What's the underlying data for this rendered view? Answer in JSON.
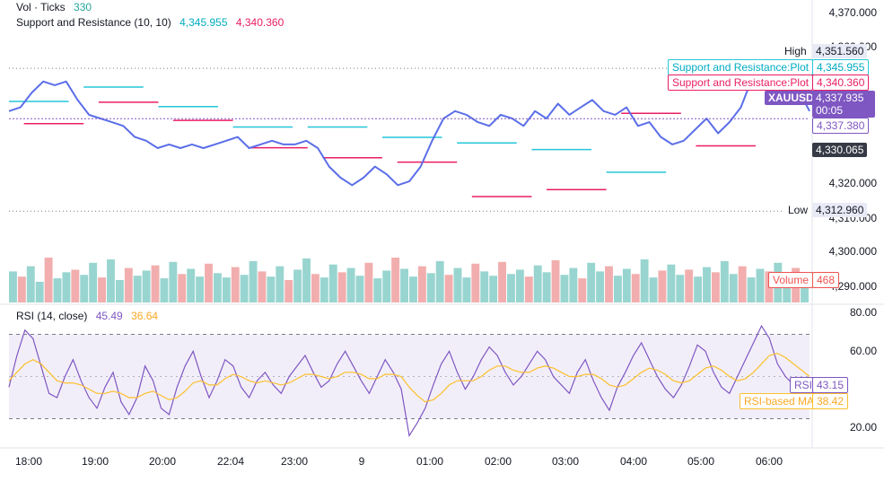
{
  "legend": {
    "vol_label": "Vol · Ticks",
    "vol_value": "330",
    "sr_label": "Support and Resistance (10, 10)",
    "sr_value1": "4,345.955",
    "sr_value2": "4,340.360",
    "rsi_label": "RSI (14, close)",
    "rsi_value": "45.49",
    "rsi_ma_value": "36.64"
  },
  "price_axis": {
    "ticks": [
      "4,370.000",
      "4,360.000",
      "4,320.000",
      "4,310.000",
      "4,300.000",
      "4,290.000"
    ]
  },
  "rsi_axis": {
    "ticks": [
      "80.00",
      "60.00",
      "20.00"
    ]
  },
  "tags": {
    "high_label": "High",
    "high_value": "4,351.560",
    "sr_plot_label": "Support and Resistance:Plot",
    "sr_plot_value_1": "4,345.955",
    "sr_plot_value_2": "4,340.360",
    "symbol": "XAUUSD",
    "last_price": "4,337.935",
    "countdown": "00:05",
    "prev_price": "4,337.380",
    "crosshair_price": "4,330.065",
    "low_label": "Low",
    "low_value": "4,312.960",
    "volume_label": "Volume",
    "volume_value": "468",
    "rsi_label": "RSI",
    "rsi_value": "43.15",
    "rsi_ma_label": "RSI-based MA",
    "rsi_ma_value": "38.42"
  },
  "time_axis": [
    "18:00",
    "19:00",
    "20:00",
    "22:04",
    "23:00",
    "9",
    "01:00",
    "02:00",
    "03:00",
    "04:00",
    "05:00",
    "06:00"
  ],
  "colors": {
    "price_line": "#5b6ee8",
    "price_line_recent": "#7e57c2",
    "resistance": "#26c6da",
    "support": "#e91e63",
    "vol_up": "#80cbc4",
    "vol_down": "#ef9a9a",
    "rsi_line": "#7e57c2",
    "rsi_ma": "#fbc02d",
    "rsi_band": "#ede7f6"
  },
  "chart_data": {
    "type": "line",
    "price": {
      "x": [
        "17:50",
        "18:00",
        "18:10",
        "18:20",
        "18:30",
        "18:40",
        "18:50",
        "19:00",
        "19:10",
        "19:20",
        "19:30",
        "19:40",
        "19:50",
        "20:00",
        "20:10",
        "20:20",
        "20:30",
        "20:40",
        "20:50",
        "22:04",
        "22:10",
        "22:20",
        "22:30",
        "22:40",
        "22:50",
        "23:00",
        "23:10",
        "23:20",
        "23:30",
        "23:40",
        "23:50",
        "0:00",
        "0:10",
        "0:20",
        "0:30",
        "0:40",
        "0:50",
        "01:00",
        "01:10",
        "01:20",
        "01:30",
        "01:40",
        "01:50",
        "02:00",
        "02:10",
        "02:20",
        "02:30",
        "02:40",
        "02:50",
        "03:00",
        "03:10",
        "03:20",
        "03:30",
        "03:40",
        "03:50",
        "04:00",
        "04:10",
        "04:20",
        "04:30",
        "04:40",
        "04:50",
        "05:00",
        "05:10",
        "05:20",
        "05:30",
        "05:40",
        "05:50",
        "06:00",
        "06:10",
        "06:20",
        "06:30"
      ],
      "y": [
        4340,
        4341,
        4345,
        4348,
        4347,
        4348,
        4343,
        4339,
        4338,
        4337,
        4336,
        4333,
        4332,
        4330,
        4331,
        4330,
        4331,
        4330,
        4331,
        4332,
        4333,
        4330,
        4331,
        4332,
        4331,
        4331,
        4332,
        4330,
        4325,
        4322,
        4320,
        4322,
        4325,
        4323,
        4320,
        4321,
        4325,
        4332,
        4338,
        4340,
        4339,
        4337,
        4336,
        4339,
        4338,
        4336,
        4340,
        4338,
        4342,
        4339,
        4341,
        4343,
        4340,
        4339,
        4341,
        4336,
        4337,
        4333,
        4331,
        4332,
        4335,
        4338,
        4334,
        4337,
        4341,
        4349,
        4350,
        4347,
        4349,
        4346,
        4340
      ],
      "ylim": [
        4290,
        4370
      ]
    },
    "resistance_levels": [
      4342.6,
      4346.5,
      4341.2,
      4335.7,
      4335.7,
      4332.9,
      4331.4,
      4329.6,
      4323.5,
      4346.8
    ],
    "support_levels": [
      4336.6,
      4342.4,
      4337.5,
      4330.1,
      4327.4,
      4326.2,
      4316.9,
      4318.8,
      4339.4,
      4330.6
    ],
    "volume": {
      "max": 468,
      "values": [
        180,
        150,
        210,
        120,
        260,
        140,
        175,
        190,
        160,
        230,
        145,
        250,
        130,
        200,
        155,
        185,
        215,
        140,
        235,
        165,
        195,
        150,
        225,
        170,
        145,
        205,
        160,
        240,
        180,
        150,
        210,
        130,
        190,
        255,
        165,
        145,
        220,
        175,
        200,
        155,
        230,
        140,
        185,
        260,
        195,
        150,
        210,
        170,
        240,
        160,
        200,
        145,
        225,
        180,
        155,
        235,
        165,
        190,
        150,
        215,
        175,
        245,
        160,
        200,
        140,
        230,
        180,
        210,
        155,
        195,
        165,
        250,
        145,
        185,
        220,
        160,
        190,
        150,
        205,
        175,
        240,
        165,
        210,
        145,
        195,
        180,
        230,
        150,
        200,
        170
      ]
    },
    "rsi": {
      "ylim": [
        20,
        80
      ],
      "bands": [
        70,
        30
      ],
      "values": [
        45,
        60,
        72,
        68,
        55,
        42,
        40,
        50,
        58,
        48,
        40,
        35,
        45,
        52,
        38,
        32,
        40,
        55,
        48,
        35,
        32,
        45,
        55,
        62,
        50,
        40,
        48,
        58,
        55,
        45,
        40,
        48,
        52,
        46,
        42,
        50,
        55,
        60,
        52,
        45,
        48,
        56,
        62,
        55,
        48,
        42,
        50,
        58,
        52,
        44,
        22,
        28,
        35,
        46,
        56,
        62,
        52,
        44,
        50,
        58,
        64,
        60,
        52,
        46,
        50,
        56,
        62,
        58,
        50,
        46,
        42,
        52,
        58,
        48,
        40,
        34,
        45,
        52,
        60,
        66,
        58,
        50,
        44,
        40,
        46,
        55,
        65,
        62,
        52,
        45,
        42,
        50,
        58,
        66,
        74,
        68,
        56,
        50,
        46,
        44,
        40
      ],
      "ma": [
        48,
        52,
        56,
        58,
        56,
        52,
        48,
        47,
        47,
        46,
        44,
        42,
        42,
        43,
        42,
        40,
        40,
        42,
        43,
        41,
        39,
        40,
        43,
        47,
        48,
        46,
        46,
        49,
        51,
        50,
        48,
        47,
        48,
        47,
        46,
        47,
        49,
        51,
        51,
        50,
        49,
        50,
        52,
        52,
        51,
        49,
        49,
        51,
        51,
        50,
        45,
        41,
        38,
        39,
        42,
        46,
        48,
        48,
        48,
        50,
        53,
        55,
        55,
        53,
        52,
        52,
        54,
        55,
        54,
        52,
        50,
        50,
        51,
        51,
        49,
        46,
        45,
        46,
        49,
        52,
        54,
        53,
        51,
        48,
        47,
        48,
        51,
        54,
        55,
        53,
        50,
        48,
        49,
        52,
        56,
        60,
        61,
        59,
        56,
        53,
        50
      ]
    }
  }
}
